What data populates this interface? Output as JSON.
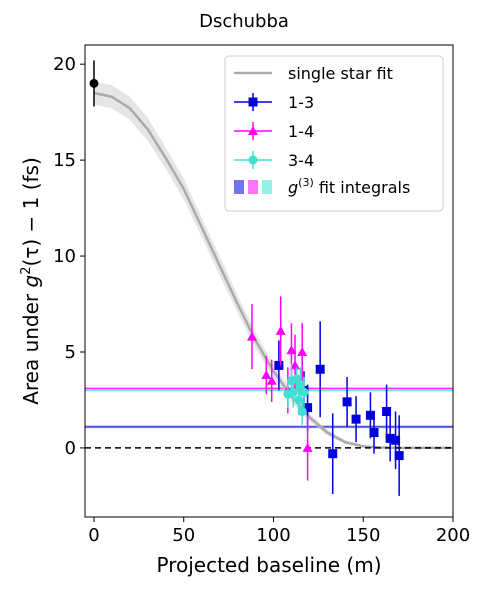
{
  "chart_data": {
    "type": "scatter",
    "title": "Dschubba",
    "xlabel": "Projected baseline (m)",
    "ylabel_parts": {
      "prefix": "Area under ",
      "g": "g",
      "sup": "2",
      "arg": "(τ) − 1 (fs)"
    },
    "xlim": [
      -5,
      200
    ],
    "ylim": [
      -3.6,
      21
    ],
    "xticks": [
      0,
      50,
      100,
      150,
      200
    ],
    "yticks": [
      0,
      5,
      10,
      15,
      20
    ],
    "xtick_labels": [
      "0",
      "50",
      "100",
      "150",
      "200"
    ],
    "ytick_labels": [
      "0",
      "5",
      "10",
      "15",
      "20"
    ],
    "grid": false,
    "legend_position": "top-right",
    "legend": {
      "single_star_fit": "single star fit",
      "s13": "1-3",
      "s14": "1-4",
      "s34": "3-4",
      "g3_prefix": "g",
      "g3_sup": "(3)",
      "g3_suffix": " fit integrals"
    },
    "colors": {
      "s13": "#0000dd",
      "s14": "#ff00ff",
      "s34": "#40e0d0",
      "fit": "#aaaaaa",
      "zero_point": "#000000"
    },
    "fit_curve": {
      "x": [
        0,
        10,
        20,
        30,
        40,
        50,
        60,
        70,
        80,
        90,
        100,
        110,
        120,
        130,
        140,
        150,
        160,
        170,
        180,
        190,
        200
      ],
      "y": [
        18.5,
        18.3,
        17.7,
        16.6,
        15.1,
        13.5,
        11.5,
        9.5,
        7.5,
        5.6,
        4.0,
        2.7,
        1.6,
        0.8,
        0.3,
        0.08,
        0.02,
        0.0,
        0.0,
        0.0,
        0.0
      ],
      "band_halfwidth": [
        0.6,
        0.6,
        0.6,
        0.6,
        0.55,
        0.55,
        0.5,
        0.5,
        0.45,
        0.4,
        0.35,
        0.3,
        0.2,
        0.15,
        0.1,
        0.05,
        0.02,
        0.01,
        0.01,
        0.01,
        0.01
      ]
    },
    "zero_point": {
      "x": 0,
      "y": 19.0,
      "err": 1.2
    },
    "zero_line": 0,
    "hbands": [
      {
        "series": "s14",
        "y": 3.1,
        "halfwidth": 0.07
      },
      {
        "series": "s34",
        "y": 3.0,
        "halfwidth": 0.07
      },
      {
        "series": "s13",
        "y": 1.1,
        "halfwidth": 0.07
      }
    ],
    "series": [
      {
        "key": "s13",
        "name": "1-3",
        "marker": "square",
        "points": [
          {
            "x": 103,
            "y": 4.3,
            "yerr": 1.3
          },
          {
            "x": 117,
            "y": 3.0,
            "yerr": 1.0
          },
          {
            "x": 119,
            "y": 2.1,
            "yerr": 1.2
          },
          {
            "x": 126,
            "y": 4.1,
            "yerr": 2.5
          },
          {
            "x": 133,
            "y": -0.3,
            "yerr": 2.1
          },
          {
            "x": 141,
            "y": 2.4,
            "yerr": 1.3
          },
          {
            "x": 146,
            "y": 1.5,
            "yerr": 1.2
          },
          {
            "x": 154,
            "y": 1.7,
            "yerr": 1.2
          },
          {
            "x": 156,
            "y": 0.8,
            "yerr": 1.1
          },
          {
            "x": 163,
            "y": 1.9,
            "yerr": 1.4
          },
          {
            "x": 165,
            "y": 0.5,
            "yerr": 1.2
          },
          {
            "x": 168,
            "y": 0.4,
            "yerr": 1.5
          },
          {
            "x": 170,
            "y": -0.4,
            "yerr": 2.1
          }
        ]
      },
      {
        "key": "s14",
        "name": "1-4",
        "marker": "triangle",
        "points": [
          {
            "x": 88,
            "y": 5.8,
            "yerr": 1.7
          },
          {
            "x": 96,
            "y": 3.8,
            "yerr": 1.0
          },
          {
            "x": 99,
            "y": 3.5,
            "yerr": 1.1
          },
          {
            "x": 104,
            "y": 6.1,
            "yerr": 1.8
          },
          {
            "x": 108,
            "y": 3.0,
            "yerr": 1.2
          },
          {
            "x": 110,
            "y": 5.1,
            "yerr": 1.4
          },
          {
            "x": 112,
            "y": 4.3,
            "yerr": 1.6
          },
          {
            "x": 116,
            "y": 5.0,
            "yerr": 1.5
          },
          {
            "x": 119,
            "y": 0.0,
            "yerr": 1.7
          }
        ]
      },
      {
        "key": "s34",
        "name": "3-4",
        "marker": "circle",
        "points": [
          {
            "x": 108,
            "y": 2.8,
            "yerr": 0.7
          },
          {
            "x": 110,
            "y": 3.5,
            "yerr": 0.9
          },
          {
            "x": 111,
            "y": 2.9,
            "yerr": 0.8
          },
          {
            "x": 113,
            "y": 3.6,
            "yerr": 0.6
          },
          {
            "x": 114,
            "y": 2.5,
            "yerr": 0.8
          },
          {
            "x": 115,
            "y": 3.3,
            "yerr": 0.9
          },
          {
            "x": 116,
            "y": 1.9,
            "yerr": 0.7
          },
          {
            "x": 117,
            "y": 2.9,
            "yerr": 0.8
          }
        ]
      }
    ]
  }
}
